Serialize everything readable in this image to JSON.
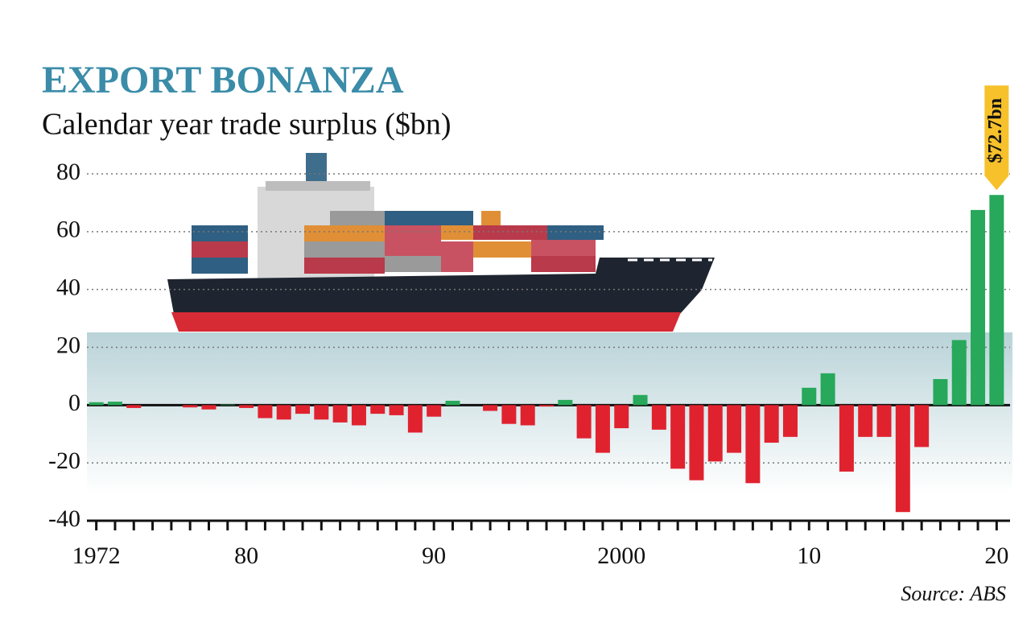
{
  "chart_data": {
    "type": "bar",
    "title": "EXPORT BONANZA",
    "subtitle": "Calendar year trade surplus ($bn)",
    "source": "Source: ABS",
    "x": [
      1972,
      1973,
      1974,
      1975,
      1976,
      1977,
      1978,
      1979,
      1980,
      1981,
      1982,
      1983,
      1984,
      1985,
      1986,
      1987,
      1988,
      1989,
      1990,
      1991,
      1992,
      1993,
      1994,
      1995,
      1996,
      1997,
      1998,
      1999,
      2000,
      2001,
      2002,
      2003,
      2004,
      2005,
      2006,
      2007,
      2008,
      2009,
      2010,
      2011,
      2012,
      2013,
      2014,
      2015,
      2016,
      2017,
      2018,
      2019,
      2020
    ],
    "values": [
      1,
      1.2,
      -1,
      0,
      0,
      -0.8,
      -1.5,
      0.2,
      -1,
      -4.5,
      -5,
      -3,
      -5,
      -6,
      -7,
      -3,
      -3.5,
      -9.5,
      -4,
      1.5,
      0,
      -2,
      -6.5,
      -7,
      -0.5,
      1.8,
      -11.5,
      -16.5,
      -8,
      3.5,
      -8.5,
      -22,
      -26,
      -19.5,
      -16.5,
      -27,
      -13,
      -11,
      6,
      11,
      -23,
      -11,
      -11,
      -37,
      -14.5,
      9,
      22.5,
      67.5,
      72.7
    ],
    "value_labels": [
      null,
      null,
      null,
      null,
      null,
      null,
      null,
      null,
      null,
      null,
      null,
      null,
      null,
      null,
      null,
      null,
      null,
      null,
      null,
      null,
      null,
      null,
      null,
      null,
      null,
      null,
      null,
      null,
      null,
      null,
      null,
      null,
      null,
      null,
      null,
      null,
      null,
      null,
      null,
      null,
      null,
      null,
      null,
      null,
      null,
      null,
      null,
      null,
      "$72.7bn"
    ],
    "positive_color": "#27a85a",
    "negative_color": "#e0222f",
    "xlim": [
      1971.5,
      2020.5
    ],
    "xticks": [
      1972,
      {
        "value": 1980,
        "label": "80"
      },
      {
        "value": 1990,
        "label": "90"
      },
      2000,
      {
        "value": 2010,
        "label": "10"
      },
      {
        "value": 2020,
        "label": "20"
      }
    ],
    "ylim": [
      -40,
      80
    ],
    "yticks": [
      -40,
      -20,
      0,
      20,
      40,
      60,
      80
    ],
    "grid": true
  }
}
